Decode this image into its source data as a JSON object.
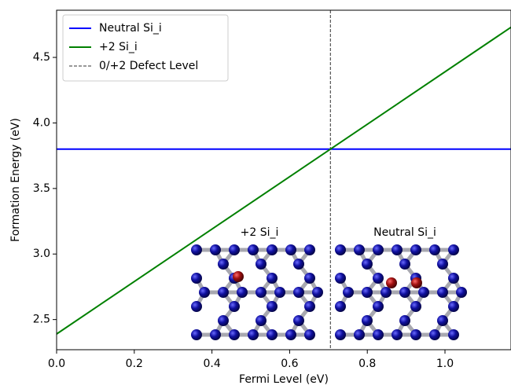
{
  "chart_data": {
    "type": "line",
    "xlabel": "Fermi Level (eV)",
    "ylabel": "Formation Energy (eV)",
    "xlim": [
      0,
      1.17
    ],
    "ylim": [
      2.27,
      4.86
    ],
    "xticks": [
      {
        "value": 0,
        "label": "0.0"
      },
      0.2,
      0.4,
      0.6,
      0.8,
      {
        "value": 1,
        "label": "1.0"
      }
    ],
    "yticks": [
      2.5,
      {
        "value": 3,
        "label": "3.0"
      },
      3.5,
      {
        "value": 4,
        "label": "4.0"
      },
      4.5
    ],
    "series": [
      {
        "name": "Neutral Si_i",
        "color": "#0000ff",
        "x": [
          0,
          1.17
        ],
        "values": [
          3.8,
          3.8
        ]
      },
      {
        "name": "+2 Si_i",
        "color": "#008000",
        "x": [
          0,
          1.17
        ],
        "values": [
          2.39,
          4.73
        ]
      }
    ],
    "reference_lines": [
      {
        "name": "0/+2 Defect Level",
        "x": 0.705,
        "color": "#333333",
        "dashed": true
      }
    ],
    "annotations": [
      "+2 Si_i",
      "Neutral Si_i"
    ],
    "legend": "upper left"
  }
}
